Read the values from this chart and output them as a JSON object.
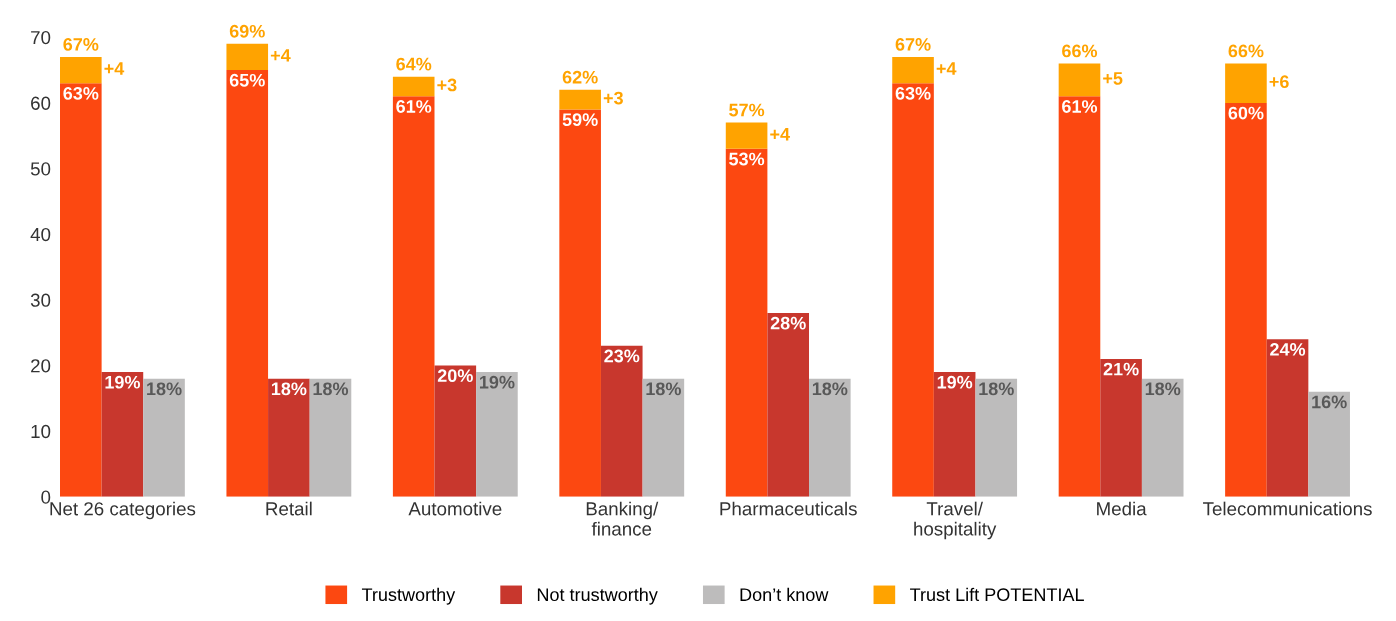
{
  "chart_data": {
    "type": "bar",
    "stacked": true,
    "categories": [
      null,
      "Net 26 categories",
      null,
      null,
      null,
      "Retail",
      null,
      null,
      null,
      "Automotive",
      null,
      null,
      null,
      "Banking/\nfinance",
      null,
      null,
      null,
      "Pharmaceuticals",
      null,
      null,
      null,
      "Travel/\nhospitality",
      null,
      null,
      null,
      "Media",
      null,
      null,
      null,
      "Telecommunications",
      null
    ],
    "series": [
      {
        "name": "Trustworthy",
        "color": "#fc4811",
        "values": [
          63,
          null,
          null,
          null,
          65,
          null,
          null,
          null,
          61,
          null,
          null,
          null,
          59,
          null,
          null,
          null,
          53,
          null,
          null,
          null,
          63,
          null,
          null,
          null,
          61,
          null,
          null,
          null,
          60,
          null,
          null
        ],
        "value_labels": [
          "63%",
          null,
          null,
          null,
          "65%",
          null,
          null,
          null,
          "61%",
          null,
          null,
          null,
          "59%",
          null,
          null,
          null,
          "53%",
          null,
          null,
          null,
          "63%",
          null,
          null,
          null,
          "61%",
          null,
          null,
          null,
          "60%",
          null,
          null
        ]
      },
      {
        "name": "Not trustworthy",
        "color": "#c8372d",
        "values": [
          null,
          19,
          null,
          null,
          null,
          18,
          null,
          null,
          null,
          20,
          null,
          null,
          null,
          23,
          null,
          null,
          null,
          28,
          null,
          null,
          null,
          19,
          null,
          null,
          null,
          21,
          null,
          null,
          null,
          24,
          null
        ],
        "value_labels": [
          null,
          "19%",
          null,
          null,
          null,
          "18%",
          null,
          null,
          null,
          "20%",
          null,
          null,
          null,
          "23%",
          null,
          null,
          null,
          "28%",
          null,
          null,
          null,
          "19%",
          null,
          null,
          null,
          "21%",
          null,
          null,
          null,
          "24%",
          null
        ]
      },
      {
        "name": "Don’t know",
        "color": "#bdbcbc",
        "values": [
          null,
          null,
          18,
          null,
          null,
          null,
          18,
          null,
          null,
          null,
          19,
          null,
          null,
          null,
          18,
          null,
          null,
          null,
          18,
          null,
          null,
          null,
          18,
          null,
          null,
          null,
          18,
          null,
          null,
          null,
          16
        ],
        "value_labels": [
          null,
          null,
          "18%",
          null,
          null,
          null,
          "18%",
          null,
          null,
          null,
          "19%",
          null,
          null,
          null,
          "18%",
          null,
          null,
          null,
          "18%",
          null,
          null,
          null,
          "18%",
          null,
          null,
          null,
          "18%",
          null,
          null,
          null,
          "16%"
        ]
      },
      {
        "name": "Trust Lift POTENTIAL",
        "color": "#ffa300",
        "values": [
          4,
          null,
          null,
          null,
          4,
          null,
          null,
          null,
          3,
          null,
          null,
          null,
          3,
          null,
          null,
          null,
          4,
          null,
          null,
          null,
          4,
          null,
          null,
          null,
          5,
          null,
          null,
          null,
          6,
          null,
          null
        ],
        "value_labels": [
          "+4",
          null,
          null,
          null,
          "+4",
          null,
          null,
          null,
          "+3",
          null,
          null,
          null,
          "+3",
          null,
          null,
          null,
          "+4",
          null,
          null,
          null,
          "+4",
          null,
          null,
          null,
          "+5",
          null,
          null,
          null,
          "+6",
          null,
          null
        ]
      }
    ],
    "totals": [
      "67%",
      null,
      null,
      null,
      "69%",
      null,
      null,
      null,
      "64%",
      null,
      null,
      null,
      "62%",
      null,
      null,
      null,
      "57%",
      null,
      null,
      null,
      "67%",
      null,
      null,
      null,
      "66%",
      null,
      null,
      null,
      "66%",
      null,
      null
    ],
    "ylim": [
      0,
      70
    ],
    "yticks": [
      0,
      10,
      20,
      30,
      40,
      50,
      60,
      70
    ],
    "grid": false,
    "legend": "bottom"
  }
}
